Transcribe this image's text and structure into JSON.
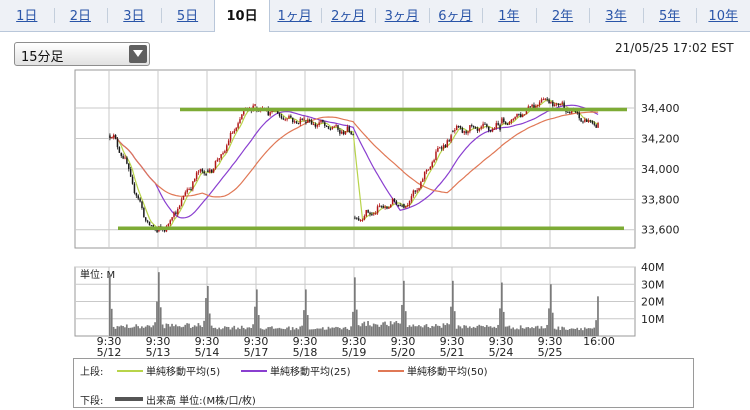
{
  "tabs": [
    {
      "label": "1日",
      "active": false
    },
    {
      "label": "2日",
      "active": false
    },
    {
      "label": "3日",
      "active": false
    },
    {
      "label": "5日",
      "active": false
    },
    {
      "label": "10日",
      "active": true
    },
    {
      "label": "1ヶ月",
      "active": false
    },
    {
      "label": "2ヶ月",
      "active": false
    },
    {
      "label": "3ヶ月",
      "active": false
    },
    {
      "label": "6ヶ月",
      "active": false
    },
    {
      "label": "1年",
      "active": false
    },
    {
      "label": "2年",
      "active": false
    },
    {
      "label": "3年",
      "active": false
    },
    {
      "label": "5年",
      "active": false
    },
    {
      "label": "10年",
      "active": false
    }
  ],
  "period_select": {
    "value": "15分足"
  },
  "timestamp": "21/05/25 17:02 EST",
  "colors": {
    "up": "#b01818",
    "down": "#1a1a1a",
    "sma5": "#b8d44a",
    "sma25": "#8a3fd0",
    "sma50": "#e07856",
    "support_line": "#7dab35",
    "volume": "#7a7a7a",
    "grid": "#c9c9c9",
    "panel_bg": "#ffffff",
    "tab_link": "#2a55a8"
  },
  "chart_data": [
    {
      "type": "candlestick",
      "title": "",
      "interval_minutes": 15,
      "y_ticks": [
        "34,400",
        "34,200",
        "34,000",
        "33,800",
        "33,600"
      ],
      "y_tick_values": [
        34400,
        34200,
        34000,
        33800,
        33600
      ],
      "ylim": [
        33480,
        34650
      ],
      "sessions": [
        {
          "date": "5/12",
          "open": 34220,
          "close": 33590,
          "high": 34240,
          "low": 33560
        },
        {
          "date": "5/13",
          "open": 33590,
          "close": 33990,
          "high": 34090,
          "low": 33570
        },
        {
          "date": "5/14",
          "open": 33990,
          "close": 34420,
          "high": 34450,
          "low": 33960
        },
        {
          "date": "5/17",
          "open": 34400,
          "close": 34310,
          "high": 34420,
          "low": 34150
        },
        {
          "date": "5/18",
          "open": 34310,
          "close": 34240,
          "high": 34360,
          "low": 34050
        },
        {
          "date": "5/19",
          "open": 33680,
          "close": 33780,
          "high": 33810,
          "low": 33510
        },
        {
          "date": "5/20",
          "open": 33770,
          "close": 34190,
          "high": 34230,
          "low": 33660
        },
        {
          "date": "5/21",
          "open": 34250,
          "close": 34270,
          "high": 34410,
          "low": 34150
        },
        {
          "date": "5/24",
          "open": 34300,
          "close": 34460,
          "high": 34480,
          "low": 34290
        },
        {
          "date": "5/25",
          "open": 34440,
          "close": 34290,
          "high": 34480,
          "low": 34270
        }
      ],
      "horizontal_lines": [
        34390,
        33610
      ],
      "moving_averages": [
        {
          "period": 5
        },
        {
          "period": 25
        },
        {
          "period": 50
        }
      ],
      "grid": true
    },
    {
      "type": "bar",
      "title": "",
      "unit_label": "単位: M",
      "y_ticks": [
        "40M",
        "30M",
        "20M",
        "10M"
      ],
      "y_tick_values": [
        40,
        30,
        20,
        10
      ],
      "ylim": [
        0,
        40
      ],
      "session_volume": {
        "open_spike": [
          35,
          37,
          29,
          27,
          27,
          34,
          32,
          32,
          31,
          30
        ],
        "close_spike": [
          20,
          22,
          17,
          15,
          14,
          18,
          17,
          16,
          16,
          23
        ],
        "typical": [
          5.5,
          6,
          5,
          4.5,
          4.5,
          7,
          6,
          5.5,
          5,
          4.5
        ]
      }
    }
  ],
  "x_axis": {
    "ticks": [
      {
        "time": "9:30",
        "date": "5/12"
      },
      {
        "time": "9:30",
        "date": "5/13"
      },
      {
        "time": "9:30",
        "date": "5/14"
      },
      {
        "time": "9:30",
        "date": "5/17"
      },
      {
        "time": "9:30",
        "date": "5/18"
      },
      {
        "time": "9:30",
        "date": "5/19"
      },
      {
        "time": "9:30",
        "date": "5/20"
      },
      {
        "time": "9:30",
        "date": "5/21"
      },
      {
        "time": "9:30",
        "date": "5/24"
      },
      {
        "time": "9:30",
        "date": "5/25"
      }
    ],
    "end_label": "16:00"
  },
  "legend": {
    "upper_label": "上段:",
    "lower_label": "下段:",
    "sma5": "単純移動平均(5)",
    "sma25": "単純移動平均(25)",
    "sma50": "単純移動平均(50)",
    "volume": "出来高 単位:(M株/口/枚)"
  }
}
